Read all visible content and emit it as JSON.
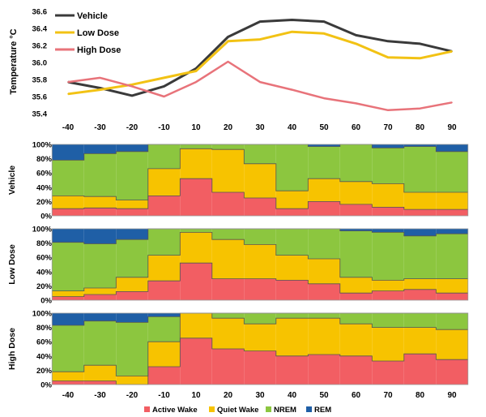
{
  "colors": {
    "vehicle": "#3a3a3a",
    "low_dose": "#f2c214",
    "high_dose": "#e8737a",
    "active_wake": "#f25e63",
    "quiet_wake": "#f7c300",
    "nrem": "#8cc63f",
    "rem": "#1f5fa6",
    "border": "#555555"
  },
  "chart_data": [
    {
      "type": "line",
      "ylabel": "Temperature °C",
      "xlabel": "",
      "x": [
        -40,
        -30,
        -20,
        -10,
        10,
        20,
        30,
        40,
        50,
        60,
        70,
        80,
        90
      ],
      "ylim": [
        35.4,
        36.6
      ],
      "yticks": [
        "36.6",
        "36.4",
        "36.2",
        "36.0",
        "35.8",
        "35.6",
        "35.4"
      ],
      "grid": false,
      "legend_position": "top-left",
      "series": [
        {
          "name": "Vehicle",
          "values": [
            35.77,
            35.7,
            35.61,
            35.72,
            35.93,
            36.3,
            36.48,
            36.5,
            36.48,
            36.32,
            36.25,
            36.22,
            36.13
          ]
        },
        {
          "name": "Low Dose",
          "values": [
            35.63,
            35.68,
            35.74,
            35.82,
            35.9,
            36.25,
            36.27,
            36.36,
            36.34,
            36.22,
            36.06,
            36.05,
            36.13
          ]
        },
        {
          "name": "High Dose",
          "values": [
            35.77,
            35.82,
            35.72,
            35.6,
            35.77,
            36.01,
            35.77,
            35.68,
            35.58,
            35.52,
            35.44,
            35.46,
            35.53
          ]
        }
      ]
    },
    {
      "type": "area",
      "ylabel": "Vehicle",
      "yticks": [
        "100%",
        "80%",
        "60%",
        "40%",
        "20%",
        "0%"
      ],
      "ylim": [
        0,
        100
      ],
      "x": [
        -40,
        -30,
        -20,
        -10,
        10,
        20,
        30,
        40,
        50,
        60,
        70,
        80,
        90
      ],
      "series": [
        {
          "name": "Active Wake",
          "values": [
            10,
            11,
            10,
            28,
            52,
            33,
            25,
            10,
            20,
            16,
            12,
            9,
            9
          ]
        },
        {
          "name": "Quiet Wake",
          "values": [
            18,
            16,
            12,
            38,
            42,
            60,
            48,
            25,
            32,
            32,
            33,
            24,
            24
          ]
        },
        {
          "name": "NREM",
          "values": [
            50,
            60,
            68,
            34,
            6,
            7,
            27,
            65,
            45,
            52,
            50,
            64,
            57
          ]
        },
        {
          "name": "REM",
          "values": [
            22,
            13,
            10,
            0,
            0,
            0,
            0,
            0,
            3,
            0,
            5,
            3,
            10
          ]
        }
      ]
    },
    {
      "type": "area",
      "ylabel": "Low Dose",
      "yticks": [
        "100%",
        "80%",
        "60%",
        "40%",
        "20%",
        "0%"
      ],
      "ylim": [
        0,
        100
      ],
      "x": [
        -40,
        -30,
        -20,
        -10,
        10,
        20,
        30,
        40,
        50,
        60,
        70,
        80,
        90
      ],
      "series": [
        {
          "name": "Active Wake",
          "values": [
            5,
            8,
            12,
            27,
            52,
            30,
            30,
            28,
            23,
            10,
            13,
            15,
            10
          ]
        },
        {
          "name": "Quiet Wake",
          "values": [
            8,
            9,
            20,
            36,
            43,
            55,
            48,
            35,
            35,
            22,
            15,
            15,
            20
          ]
        },
        {
          "name": "NREM",
          "values": [
            68,
            62,
            53,
            37,
            5,
            15,
            22,
            37,
            42,
            65,
            67,
            60,
            63
          ]
        },
        {
          "name": "REM",
          "values": [
            19,
            21,
            15,
            0,
            0,
            0,
            0,
            0,
            0,
            3,
            5,
            10,
            7
          ]
        }
      ]
    },
    {
      "type": "area",
      "ylabel": "High Dose",
      "yticks": [
        "100%",
        "80%",
        "60%",
        "40%",
        "20%",
        "0%"
      ],
      "ylim": [
        0,
        100
      ],
      "x": [
        -40,
        -30,
        -20,
        -10,
        10,
        20,
        30,
        40,
        50,
        60,
        70,
        80,
        90
      ],
      "xticks": [
        "-40",
        "-30",
        "-20",
        "-10",
        "10",
        "20",
        "30",
        "40",
        "50",
        "60",
        "70",
        "80",
        "90"
      ],
      "series": [
        {
          "name": "Active Wake",
          "values": [
            5,
            5,
            0,
            25,
            65,
            50,
            47,
            40,
            42,
            40,
            33,
            43,
            35
          ]
        },
        {
          "name": "Quiet Wake",
          "values": [
            13,
            22,
            12,
            35,
            35,
            43,
            38,
            53,
            51,
            45,
            47,
            37,
            42
          ]
        },
        {
          "name": "NREM",
          "values": [
            65,
            62,
            75,
            35,
            0,
            7,
            15,
            7,
            7,
            15,
            20,
            20,
            23
          ]
        },
        {
          "name": "REM",
          "values": [
            17,
            11,
            13,
            5,
            0,
            0,
            0,
            0,
            0,
            0,
            0,
            0,
            0
          ]
        }
      ]
    }
  ],
  "top_xticks": [
    "-40",
    "-30",
    "-20",
    "-10",
    "10",
    "20",
    "30",
    "40",
    "50",
    "60",
    "70",
    "80",
    "90"
  ],
  "legend_bottom": [
    "Active Wake",
    "Quiet Wake",
    "NREM",
    "REM"
  ]
}
